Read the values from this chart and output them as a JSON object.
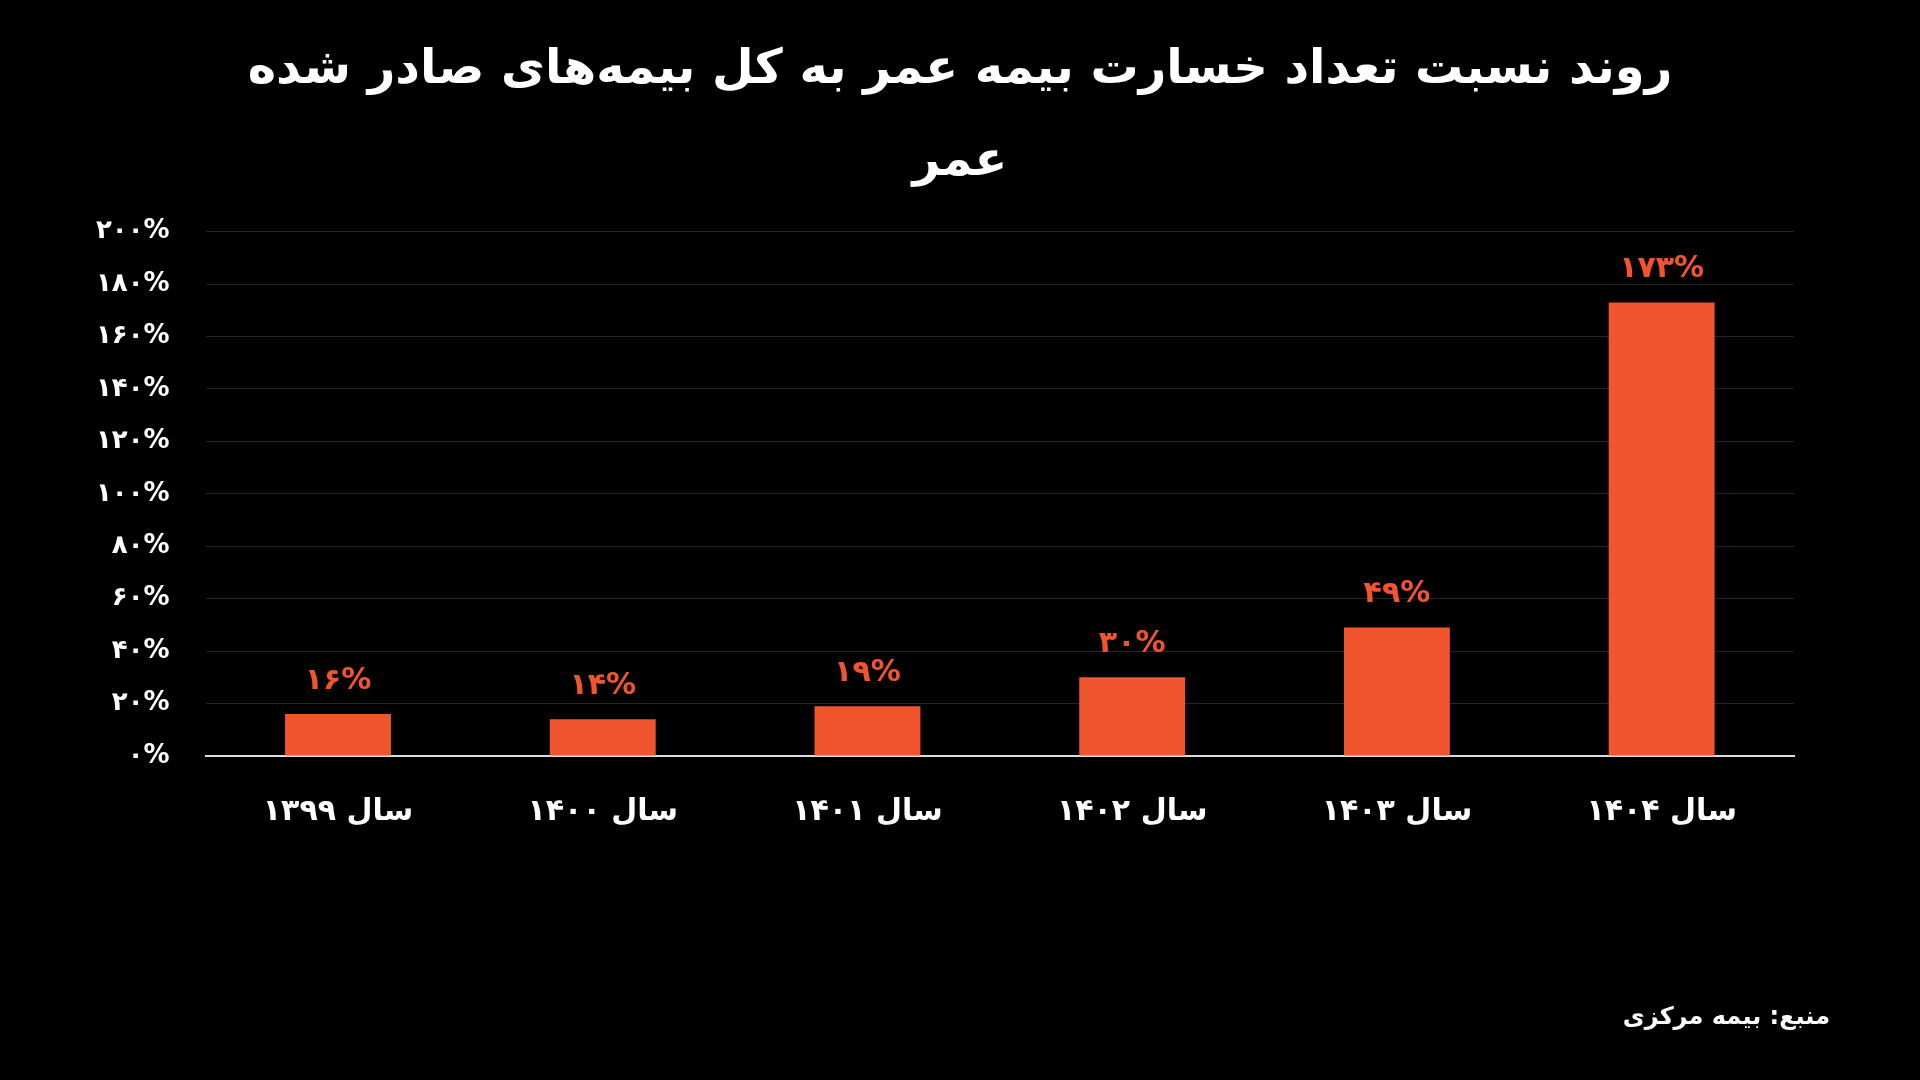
{
  "chart_data": {
    "type": "bar",
    "title": "روند نسبت تعداد خسارت بیمه عمر به کل بیمه‌های صادر شده عمر",
    "categories": [
      "سال ۱۳۹۹",
      "سال ۱۴۰۰",
      "سال ۱۴۰۱",
      "سال ۱۴۰۲",
      "سال ۱۴۰۳",
      "سال ۱۴۰۴"
    ],
    "values": [
      16,
      14,
      19,
      30,
      49,
      173
    ],
    "value_labels": [
      "۱۶%",
      "۱۴%",
      "۱۹%",
      "۳۰%",
      "۴۹%",
      "۱۷۳%"
    ],
    "color": "#f1552d",
    "ylim": [
      0,
      200
    ],
    "yticks": [
      {
        "value": 0,
        "label": "۰%"
      },
      {
        "value": 20,
        "label": "۲۰%"
      },
      {
        "value": 40,
        "label": "۴۰%"
      },
      {
        "value": 60,
        "label": "۶۰%"
      },
      {
        "value": 80,
        "label": "۸۰%"
      },
      {
        "value": 100,
        "label": "۱۰۰%"
      },
      {
        "value": 120,
        "label": "۱۲۰%"
      },
      {
        "value": 140,
        "label": "۱۴۰%"
      },
      {
        "value": 160,
        "label": "۱۶۰%"
      },
      {
        "value": 180,
        "label": "۱۸۰%"
      },
      {
        "value": 200,
        "label": "۲۰۰%"
      }
    ],
    "grid": "y",
    "annotations": [
      "منبع: بیمه مرکزی"
    ]
  }
}
